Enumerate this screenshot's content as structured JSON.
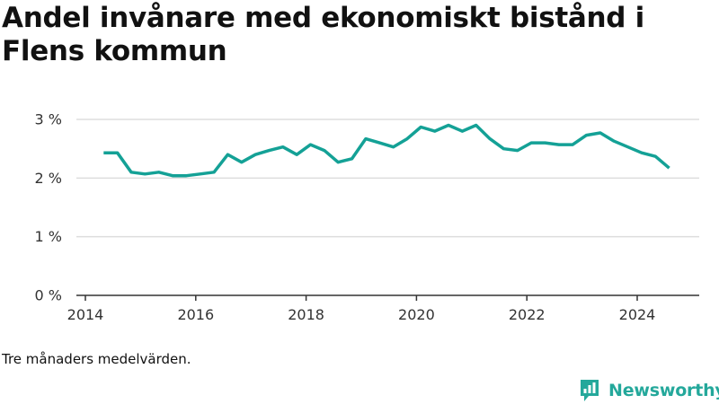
{
  "title": "Andel invånare med ekonomiskt bistånd i Flens kommun",
  "note": "Tre månaders medelvärden.",
  "brand": {
    "name": "Newsworthy",
    "icon": "newsworthy-logo-icon"
  },
  "colors": {
    "line": "#14a196",
    "grid": "#dddddd",
    "axis": "#333333",
    "brand": "#24a89b"
  },
  "chart_data": {
    "type": "line",
    "title": "Andel invånare med ekonomiskt bistånd i Flens kommun",
    "xlabel": "",
    "ylabel": "",
    "xlim": [
      2014,
      2025.25
    ],
    "ylim": [
      0,
      3
    ],
    "y_ticks": [
      {
        "value": 0,
        "label": "0 %"
      },
      {
        "value": 1,
        "label": "1 %"
      },
      {
        "value": 2,
        "label": "2 %"
      },
      {
        "value": 3,
        "label": "3 %"
      }
    ],
    "x_ticks": [
      {
        "value": 2014,
        "label": "2014"
      },
      {
        "value": 2016,
        "label": "2016"
      },
      {
        "value": 2018,
        "label": "2018"
      },
      {
        "value": 2020,
        "label": "2020"
      },
      {
        "value": 2022,
        "label": "2022"
      },
      {
        "value": 2024,
        "label": "2024"
      }
    ],
    "grid": true,
    "legend": "none",
    "series": [
      {
        "x": [
          2014.33,
          2014.58,
          2014.83,
          2015.08,
          2015.33,
          2015.58,
          2015.83,
          2016.08,
          2016.33,
          2016.58,
          2016.83,
          2017.08,
          2017.33,
          2017.58,
          2017.83,
          2018.08,
          2018.33,
          2018.58,
          2018.83,
          2019.08,
          2019.33,
          2019.58,
          2019.83,
          2020.08,
          2020.33,
          2020.58,
          2020.83,
          2021.08,
          2021.33,
          2021.58,
          2021.83,
          2022.08,
          2022.33,
          2022.58,
          2022.83,
          2023.08,
          2023.33,
          2023.58,
          2023.83,
          2024.08,
          2024.33,
          2024.58
        ],
        "values": [
          2.43,
          2.43,
          2.1,
          2.07,
          2.1,
          2.04,
          2.04,
          2.07,
          2.1,
          2.4,
          2.27,
          2.4,
          2.47,
          2.53,
          2.4,
          2.57,
          2.47,
          2.27,
          2.33,
          2.67,
          2.6,
          2.53,
          2.67,
          2.87,
          2.8,
          2.9,
          2.8,
          2.9,
          2.67,
          2.5,
          2.47,
          2.6,
          2.6,
          2.57,
          2.57,
          2.73,
          2.77,
          2.63,
          2.53,
          2.43,
          2.37,
          2.17
        ]
      }
    ]
  }
}
